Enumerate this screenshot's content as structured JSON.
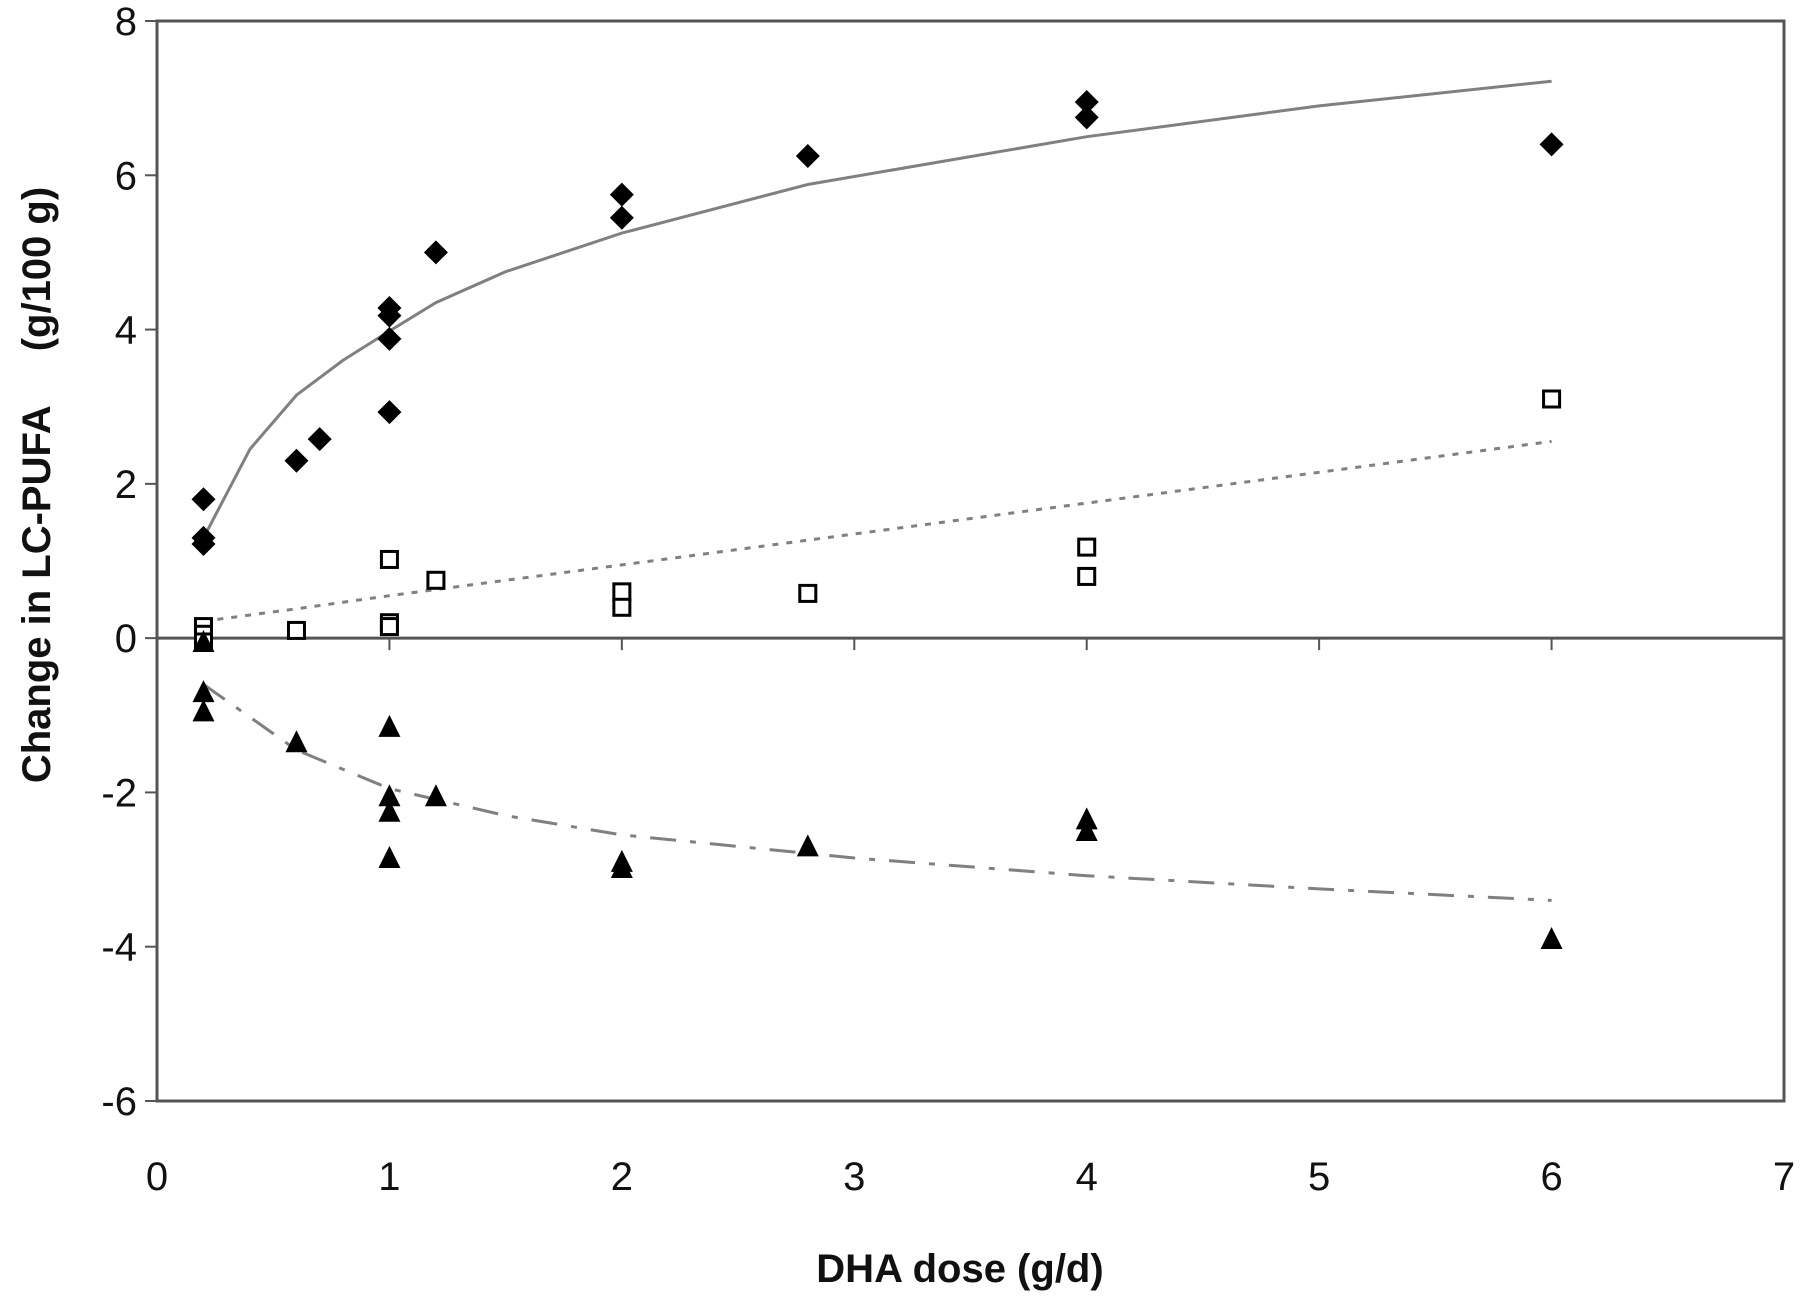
{
  "chart_data": {
    "type": "scatter",
    "title": "",
    "xlabel": "DHA dose (g/d)",
    "ylabel": "Change in LC-PUFA     (g/100 g)",
    "xlim": [
      0,
      7
    ],
    "ylim": [
      -6,
      8
    ],
    "xticks": [
      "0",
      "1",
      "2",
      "3",
      "4",
      "5",
      "6",
      "7"
    ],
    "yticks": [
      "-6",
      "-4",
      "-2",
      "0",
      "2",
      "4",
      "6",
      "8"
    ],
    "grid": false,
    "legend": "none",
    "series": [
      {
        "name": "series-diamond",
        "marker": "filled-diamond",
        "trend": "solid",
        "points": [
          [
            0.2,
            1.8
          ],
          [
            0.2,
            1.3
          ],
          [
            0.2,
            1.22
          ],
          [
            0.6,
            2.3
          ],
          [
            0.7,
            2.58
          ],
          [
            1,
            4.28
          ],
          [
            1,
            4.18
          ],
          [
            1,
            3.88
          ],
          [
            1,
            2.93
          ],
          [
            1.2,
            5.0
          ],
          [
            2,
            5.75
          ],
          [
            2,
            5.45
          ],
          [
            2.8,
            6.25
          ],
          [
            4,
            6.95
          ],
          [
            4,
            6.75
          ],
          [
            6,
            6.4
          ]
        ],
        "fit": [
          [
            0.2,
            1.3
          ],
          [
            0.4,
            2.45
          ],
          [
            0.6,
            3.15
          ],
          [
            0.8,
            3.6
          ],
          [
            1,
            3.98
          ],
          [
            1.2,
            4.35
          ],
          [
            1.5,
            4.75
          ],
          [
            2,
            5.25
          ],
          [
            2.8,
            5.88
          ],
          [
            4,
            6.5
          ],
          [
            5,
            6.9
          ],
          [
            6,
            7.22
          ]
        ]
      },
      {
        "name": "series-square",
        "marker": "open-square",
        "trend": "dotted",
        "points": [
          [
            0.2,
            0.15
          ],
          [
            0.2,
            0.05
          ],
          [
            0.2,
            -0.05
          ],
          [
            0.6,
            0.1
          ],
          [
            1,
            1.02
          ],
          [
            1,
            0.2
          ],
          [
            1,
            0.15
          ],
          [
            1.2,
            0.75
          ],
          [
            2,
            0.6
          ],
          [
            2,
            0.4
          ],
          [
            2.8,
            0.58
          ],
          [
            4,
            1.18
          ],
          [
            4,
            0.8
          ],
          [
            6,
            3.1
          ]
        ],
        "fit": [
          [
            0.2,
            0.22
          ],
          [
            0.6,
            0.38
          ],
          [
            1,
            0.55
          ],
          [
            2,
            0.95
          ],
          [
            3,
            1.35
          ],
          [
            4,
            1.75
          ],
          [
            5,
            2.15
          ],
          [
            6,
            2.55
          ]
        ]
      },
      {
        "name": "series-triangle",
        "marker": "filled-triangle",
        "trend": "dash-dot",
        "points": [
          [
            0.2,
            -0.05
          ],
          [
            0.2,
            -0.7
          ],
          [
            0.2,
            -0.95
          ],
          [
            0.6,
            -1.35
          ],
          [
            1,
            -1.15
          ],
          [
            1,
            -2.05
          ],
          [
            1,
            -2.25
          ],
          [
            1,
            -2.85
          ],
          [
            1.2,
            -2.05
          ],
          [
            2,
            -2.9
          ],
          [
            2,
            -2.98
          ],
          [
            2.8,
            -2.7
          ],
          [
            4,
            -2.35
          ],
          [
            4,
            -2.5
          ],
          [
            6,
            -3.9
          ]
        ],
        "fit": [
          [
            0.2,
            -0.6
          ],
          [
            0.6,
            -1.45
          ],
          [
            1,
            -1.95
          ],
          [
            1.5,
            -2.3
          ],
          [
            2,
            -2.55
          ],
          [
            3,
            -2.85
          ],
          [
            4,
            -3.08
          ],
          [
            5,
            -3.25
          ],
          [
            6,
            -3.4
          ]
        ]
      }
    ]
  },
  "colors": {
    "axis": "#555555",
    "marker": "#000000",
    "trend": "#808080"
  }
}
